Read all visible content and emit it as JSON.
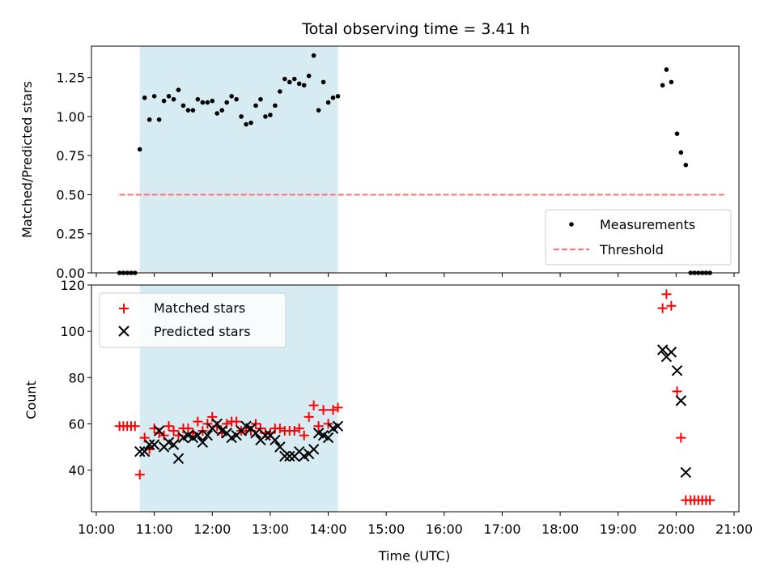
{
  "chart_data": [
    {
      "type": "scatter",
      "panel": "top",
      "title": "Total observing time = 3.41 h",
      "xlabel": "",
      "ylabel": "Matched/Predicted stars",
      "xlim": [
        "10:00",
        "21:00"
      ],
      "ylim": [
        0,
        1.45
      ],
      "yticks": [
        "0.00",
        "0.25",
        "0.50",
        "0.75",
        "1.00",
        "1.25"
      ],
      "shaded_interval": {
        "from": "10:45",
        "to": "14:10",
        "color": "#add8e6"
      },
      "legend_position": "bottom-right",
      "legend": [
        {
          "label": "Measurements",
          "marker": "dot",
          "color": "#000000"
        },
        {
          "label": "Threshold",
          "marker": "dashed-line",
          "color": "#ff6f6f"
        }
      ],
      "threshold": {
        "value": 0.5,
        "from": "10:24",
        "to": "20:50"
      },
      "series": [
        {
          "name": "Measurements",
          "points": [
            [
              "10:24",
              0
            ],
            [
              "10:28",
              0
            ],
            [
              "10:32",
              0
            ],
            [
              "10:36",
              0
            ],
            [
              "10:40",
              0
            ],
            [
              "10:45",
              0.79
            ],
            [
              "10:50",
              1.12
            ],
            [
              "10:55",
              0.98
            ],
            [
              "11:00",
              1.13
            ],
            [
              "11:05",
              0.98
            ],
            [
              "11:10",
              1.1
            ],
            [
              "11:15",
              1.13
            ],
            [
              "11:20",
              1.11
            ],
            [
              "11:25",
              1.17
            ],
            [
              "11:30",
              1.07
            ],
            [
              "11:35",
              1.04
            ],
            [
              "11:40",
              1.04
            ],
            [
              "11:45",
              1.11
            ],
            [
              "11:50",
              1.09
            ],
            [
              "11:55",
              1.09
            ],
            [
              "12:00",
              1.1
            ],
            [
              "12:05",
              1.02
            ],
            [
              "12:10",
              1.04
            ],
            [
              "12:15",
              1.09
            ],
            [
              "12:20",
              1.13
            ],
            [
              "12:25",
              1.11
            ],
            [
              "12:30",
              1.0
            ],
            [
              "12:35",
              0.95
            ],
            [
              "12:40",
              0.96
            ],
            [
              "12:45",
              1.07
            ],
            [
              "12:50",
              1.11
            ],
            [
              "12:55",
              1.0
            ],
            [
              "13:00",
              1.01
            ],
            [
              "13:05",
              1.07
            ],
            [
              "13:10",
              1.16
            ],
            [
              "13:15",
              1.24
            ],
            [
              "13:20",
              1.22
            ],
            [
              "13:25",
              1.24
            ],
            [
              "13:30",
              1.21
            ],
            [
              "13:35",
              1.2
            ],
            [
              "13:40",
              1.26
            ],
            [
              "13:45",
              1.39
            ],
            [
              "13:50",
              1.04
            ],
            [
              "13:55",
              1.22
            ],
            [
              "14:00",
              1.09
            ],
            [
              "14:05",
              1.12
            ],
            [
              "14:10",
              1.13
            ],
            [
              "19:46",
              1.2
            ],
            [
              "19:50",
              1.3
            ],
            [
              "19:55",
              1.22
            ],
            [
              "20:01",
              0.89
            ],
            [
              "20:05",
              0.77
            ],
            [
              "20:10",
              0.69
            ],
            [
              "20:15",
              0
            ],
            [
              "20:19",
              0
            ],
            [
              "20:23",
              0
            ],
            [
              "20:27",
              0
            ],
            [
              "20:31",
              0
            ],
            [
              "20:35",
              0
            ]
          ]
        }
      ]
    },
    {
      "type": "scatter",
      "panel": "bottom",
      "title": "",
      "xlabel": "Time (UTC)",
      "ylabel": "Count",
      "xlim": [
        "10:00",
        "21:00"
      ],
      "ylim": [
        22,
        120
      ],
      "yticks": [
        "40",
        "60",
        "80",
        "100",
        "120"
      ],
      "xticks": [
        "10:00",
        "11:00",
        "12:00",
        "13:00",
        "14:00",
        "15:00",
        "16:00",
        "17:00",
        "18:00",
        "19:00",
        "20:00",
        "21:00"
      ],
      "shaded_interval": {
        "from": "10:45",
        "to": "14:10",
        "color": "#add8e6"
      },
      "legend_position": "top-left",
      "legend": [
        {
          "label": "Matched stars",
          "marker": "plus",
          "color": "#ff0000"
        },
        {
          "label": "Predicted stars",
          "marker": "x",
          "color": "#000000"
        }
      ],
      "series": [
        {
          "name": "Matched stars",
          "points": [
            [
              "10:24",
              59
            ],
            [
              "10:28",
              59
            ],
            [
              "10:32",
              59
            ],
            [
              "10:36",
              59
            ],
            [
              "10:40",
              59
            ],
            [
              "10:45",
              38
            ],
            [
              "10:50",
              54
            ],
            [
              "10:55",
              49
            ],
            [
              "11:00",
              58
            ],
            [
              "11:05",
              56
            ],
            [
              "11:10",
              55
            ],
            [
              "11:15",
              59
            ],
            [
              "11:20",
              57
            ],
            [
              "11:25",
              55
            ],
            [
              "11:30",
              58
            ],
            [
              "11:35",
              58
            ],
            [
              "11:40",
              56
            ],
            [
              "11:45",
              61
            ],
            [
              "11:50",
              57
            ],
            [
              "11:55",
              60
            ],
            [
              "12:00",
              63
            ],
            [
              "12:05",
              59
            ],
            [
              "12:10",
              56
            ],
            [
              "12:15",
              60
            ],
            [
              "12:20",
              61
            ],
            [
              "12:25",
              61
            ],
            [
              "12:30",
              57
            ],
            [
              "12:35",
              57
            ],
            [
              "12:40",
              57
            ],
            [
              "12:45",
              60
            ],
            [
              "12:50",
              58
            ],
            [
              "12:55",
              56
            ],
            [
              "13:00",
              56
            ],
            [
              "13:05",
              58
            ],
            [
              "13:10",
              58
            ],
            [
              "13:15",
              57
            ],
            [
              "13:20",
              57
            ],
            [
              "13:25",
              57
            ],
            [
              "13:30",
              58
            ],
            [
              "13:35",
              55
            ],
            [
              "13:40",
              63
            ],
            [
              "13:45",
              68
            ],
            [
              "13:50",
              59
            ],
            [
              "13:55",
              66
            ],
            [
              "14:00",
              60
            ],
            [
              "14:05",
              66
            ],
            [
              "14:10",
              67
            ],
            [
              "19:46",
              110
            ],
            [
              "19:50",
              116
            ],
            [
              "19:55",
              111
            ],
            [
              "20:01",
              74
            ],
            [
              "20:05",
              54
            ],
            [
              "20:10",
              27
            ],
            [
              "20:15",
              27
            ],
            [
              "20:19",
              27
            ],
            [
              "20:23",
              27
            ],
            [
              "20:27",
              27
            ],
            [
              "20:31",
              27
            ],
            [
              "20:35",
              27
            ]
          ]
        },
        {
          "name": "Predicted stars",
          "points": [
            [
              "10:45",
              48
            ],
            [
              "10:50",
              48
            ],
            [
              "10:55",
              51
            ],
            [
              "11:00",
              51
            ],
            [
              "11:05",
              57
            ],
            [
              "11:10",
              50
            ],
            [
              "11:15",
              52
            ],
            [
              "11:20",
              51
            ],
            [
              "11:25",
              45
            ],
            [
              "11:30",
              54
            ],
            [
              "11:35",
              55
            ],
            [
              "11:40",
              54
            ],
            [
              "11:45",
              55
            ],
            [
              "11:50",
              52
            ],
            [
              "11:55",
              55
            ],
            [
              "12:00",
              58
            ],
            [
              "12:05",
              60
            ],
            [
              "12:10",
              57
            ],
            [
              "12:15",
              56
            ],
            [
              "12:20",
              54
            ],
            [
              "12:25",
              55
            ],
            [
              "12:30",
              57
            ],
            [
              "12:35",
              59
            ],
            [
              "12:40",
              58
            ],
            [
              "12:45",
              56
            ],
            [
              "12:50",
              53
            ],
            [
              "12:55",
              55
            ],
            [
              "13:00",
              55
            ],
            [
              "13:05",
              53
            ],
            [
              "13:10",
              50
            ],
            [
              "13:15",
              46
            ],
            [
              "13:20",
              46
            ],
            [
              "13:25",
              46
            ],
            [
              "13:30",
              48
            ],
            [
              "13:35",
              46
            ],
            [
              "13:40",
              47
            ],
            [
              "13:45",
              49
            ],
            [
              "13:50",
              56
            ],
            [
              "13:55",
              55
            ],
            [
              "14:00",
              54
            ],
            [
              "14:05",
              58
            ],
            [
              "14:10",
              59
            ],
            [
              "19:46",
              92
            ],
            [
              "19:50",
              89
            ],
            [
              "19:55",
              91
            ],
            [
              "20:01",
              83
            ],
            [
              "20:05",
              70
            ],
            [
              "20:10",
              39
            ]
          ]
        }
      ]
    }
  ]
}
